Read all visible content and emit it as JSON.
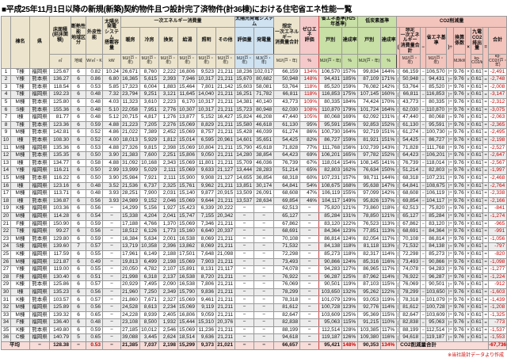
{
  "title": "■平成25年11月1日以降の新規(新築)契約物件且つ設計完了済物件(計36棟)における住宅省エネ性能一覧",
  "footnote": "※当社設計データより作成",
  "colors": {
    "header_beige": "#ece4cc",
    "pv_blue": "#cfe2f1",
    "zeroene_pink": "#f5c9c9",
    "standard_green": "#c8dfa6",
    "co2_salmon": "#f3c4bc",
    "average_pink": "#f7dcd8",
    "negative_red": "#cc0000"
  },
  "header": {
    "building": "棟名",
    "pref": "県",
    "area": "床面積\n(延床面積)",
    "area_unit": "㎡",
    "zone": "断熱性能\n地域区分",
    "zone_unit": "地域",
    "ua": "外皮性能",
    "ua_unit": "W/㎡・K",
    "pv": "太陽光発電\nシステム\n搭載容量",
    "pv_unit": "kW",
    "energy_group": "一次エネルギー消費量",
    "energy_cols": [
      "暖房",
      "冷房",
      "換気",
      "給湯",
      "照明",
      "その他"
    ],
    "mj_unit": "MJ/(戸・年)",
    "pv_group": "太陽光発電システム",
    "pv_eval": "評価量",
    "pv_gen": "発電量",
    "total": "想定\n一次エネルギー\n消費量合計",
    "zeroene": "ゼロエネ\n評価",
    "pct_unit": "%",
    "se_group": "省エネ基準(H25年基準)",
    "tt_group": "低炭素基準",
    "kobetsu": "戸別",
    "rate": "達成率",
    "co2_group": "CO2削減量",
    "co2_a": "想定\n一次エネルギー\n消費量合計",
    "co2_b": "省エネ基準",
    "co2_conv": "換算係数",
    "co2_emis": "九電CO2\n排出量",
    "co2_total": "合計",
    "mj_kwh_unit": "MJ/kWh",
    "kg_kwh_unit": "kg-CO2/kWh",
    "kg_unit": "kg-CO2/(戸・年)",
    "op_open": "(",
    "op_minus": "−",
    "op_closediv": ")÷",
    "op_times": "×",
    "op_eq": "="
  },
  "constants": {
    "conversion": "9.76",
    "emission": "0.617"
  },
  "rows": [
    [
      "1",
      "T棟",
      "福岡県",
      "125.67",
      "6",
      "0.82",
      "10.24",
      "26,671",
      "8,760",
      "2,222",
      "16,806",
      "9,523",
      "21,211",
      "18,236",
      "102,017",
      "66,159",
      "134%",
      "106,570",
      "157%",
      "99,834",
      "144%",
      "-2,491"
    ],
    [
      "2",
      "Y棟",
      "熊本県",
      "136.27",
      "6",
      "0.86",
      "6.80",
      "16,365",
      "5,615",
      "2,393",
      "7,946",
      "10,317",
      "21,211",
      "15,670",
      "80,682",
      "50,948",
      "148%",
      "94,431",
      "185%",
      "87,109",
      "171%",
      "-2,748"
    ],
    [
      "3",
      "T棟",
      "熊本県",
      "118.54",
      "6",
      "0.53",
      "5.85",
      "17,323",
      "6,004",
      "1,883",
      "15,464",
      "7,801",
      "21,142",
      "15,603",
      "58,081",
      "53,764",
      "118%",
      "85,520",
      "159%",
      "76,082",
      "142%",
      "-2,008"
    ],
    [
      "4",
      "T棟",
      "福岡県",
      "192.23",
      "6",
      "0.48",
      "7.32",
      "23,794",
      "9,251",
      "3,121",
      "11,645",
      "14,040",
      "21,211",
      "16,251",
      "71,782",
      "66,811",
      "118%",
      "116,853",
      "175%",
      "107,145",
      "160%",
      "-3,147"
    ],
    [
      "5",
      "M棟",
      "熊本県",
      "125.80",
      "6",
      "0.48",
      "4.03",
      "11,323",
      "3,610",
      "2,223",
      "6,170",
      "10,317",
      "21,211",
      "14,381",
      "40,140",
      "43,773",
      "109%",
      "80,335",
      "184%",
      "74,424",
      "170%",
      "-2,312"
    ],
    [
      "6",
      "S棟",
      "熊本県",
      "155.36",
      "6",
      "0.48",
      "5.10",
      "22,058",
      "7,951",
      "2,776",
      "10,307",
      "10,317",
      "21,211",
      "15,723",
      "80,948",
      "62,030",
      "108%",
      "110,870",
      "179%",
      "101,724",
      "164%",
      "-3,075"
    ],
    [
      "7",
      "I棟",
      "福岡県",
      "81.77",
      "6",
      "0.48",
      "5.12",
      "20,715",
      "4,817",
      "1,276",
      "13,877",
      "5,152",
      "16,427",
      "15,824",
      "46,208",
      "47,440",
      "105%",
      "80,068",
      "169%",
      "62,092",
      "131%",
      "-2,063"
    ],
    [
      "8",
      "T棟",
      "熊本県",
      "123.36",
      "6",
      "0.59",
      "4.88",
      "21,223",
      "7,205",
      "2,276",
      "15,069",
      "8,829",
      "21,211",
      "15,580",
      "46,618",
      "61,130",
      "95%",
      "95,591",
      "156%",
      "92,853",
      "152%",
      "-2,365"
    ],
    [
      "9",
      "M棟",
      "熊本県",
      "142.81",
      "6",
      "0.52",
      "4.86",
      "21,022",
      "7,389",
      "2,452",
      "15,069",
      "8,757",
      "21,211",
      "15,428",
      "46,039",
      "61,274",
      "86%",
      "100,730",
      "164%",
      "92,719",
      "151%",
      "-2,495"
    ],
    [
      "10",
      "I棟",
      "熊本県",
      "108.30",
      "6",
      "0.52",
      "4.00",
      "18,013",
      "5,929",
      "1,812",
      "15,014",
      "6,595",
      "20,961",
      "14,601",
      "35,651",
      "54,425",
      "82%",
      "86,727",
      "159%",
      "81,921",
      "151%",
      "-2,198"
    ],
    [
      "11",
      "M棟",
      "福岡県",
      "135.36",
      "6",
      "0.53",
      "4.88",
      "27,326",
      "9,815",
      "2,398",
      "15,069",
      "10,804",
      "21,211",
      "15,790",
      "45,618",
      "71,828",
      "77%",
      "111,768",
      "156%",
      "102,739",
      "143%",
      "-2,527"
    ],
    [
      "12",
      "M棟",
      "熊本県",
      "135.35",
      "6",
      "0.50",
      "3.90",
      "21,383",
      "7,600",
      "2,251",
      "15,806",
      "9,050",
      "21,211",
      "14,280",
      "38,854",
      "64,423",
      "69%",
      "106,201",
      "165%",
      "97,782",
      "152%",
      "-2,647"
    ],
    [
      "13",
      "I棟",
      "熊本県",
      "134.77",
      "6",
      "0.58",
      "4.88",
      "31,092",
      "10,168",
      "2,343",
      "15,069",
      "11,801",
      "21,211",
      "15,709",
      "46,036",
      "76,739",
      "67%",
      "118,014",
      "154%",
      "108,145",
      "141%",
      "-2,567"
    ],
    [
      "14",
      "Y棟",
      "福岡県",
      "116.21",
      "6",
      "0.50",
      "2.99",
      "13,999",
      "5,029",
      "2,111",
      "15,069",
      "9,633",
      "21,127",
      "13,444",
      "28,283",
      "51,214",
      "65%",
      "82,803",
      "162%",
      "76,634",
      "150%",
      "-1,997"
    ],
    [
      "15",
      "M棟",
      "熊本県",
      "116.22",
      "6",
      "0.50",
      "3.90",
      "25,984",
      "7,921",
      "2,111",
      "15,900",
      "9,908",
      "21,127",
      "14,655",
      "36,854",
      "68,318",
      "60%",
      "107,231",
      "157%",
      "98,711",
      "144%",
      "-2,468"
    ],
    [
      "16",
      "I棟",
      "福岡県",
      "123.16",
      "6",
      "0.48",
      "3.52",
      "21,536",
      "6,737",
      "2,325",
      "15,761",
      "9,962",
      "21,211",
      "13,851",
      "30,174",
      "64,841",
      "54%",
      "108,675",
      "168%",
      "95,638",
      "147%",
      "-2,764"
    ],
    [
      "17",
      "M棟",
      "福岡県",
      "113.71",
      "6",
      "0.48",
      "3.93",
      "28,251",
      "7,900",
      "2,031",
      "15,140",
      "9,877",
      "20,915",
      "13,509",
      "26,091",
      "68,608",
      "47%",
      "106,119",
      "155%",
      "97,099",
      "142%",
      "-2,338"
    ],
    [
      "18",
      "I棟",
      "熊本県",
      "136.87",
      "6",
      "0.56",
      "3.93",
      "24,989",
      "9,152",
      "2,046",
      "15,069",
      "9,644",
      "21,211",
      "13,537",
      "28,634",
      "69,854",
      "46%",
      "104,117",
      "149%",
      "95,826",
      "137%",
      "-2,166"
    ],
    [
      "19",
      "K棟",
      "福岡県",
      "103.36",
      "6",
      "0.56",
      "−",
      "14,299",
      "5,156",
      "1,927",
      "15,423",
      "6,339",
      "20,222",
      "−",
      "−",
      "62,513",
      "−",
      "75,820",
      "121%",
      "73,860",
      "118%",
      "-841"
    ],
    [
      "20",
      "M棟",
      "福岡県",
      "114.28",
      "6",
      "0.54",
      "−",
      "15,338",
      "4,204",
      "2,041",
      "15,747",
      "7,155",
      "20,342",
      "−",
      "−",
      "65,127",
      "−",
      "85,284",
      "131%",
      "78,850",
      "121%",
      "-1,274"
    ],
    [
      "21",
      "F棟",
      "福岡県",
      "150.90",
      "6",
      "0.59",
      "−",
      "17,188",
      "4,766",
      "1,370",
      "15,069",
      "7,346",
      "21,211",
      "−",
      "−",
      "67,862",
      "−",
      "83,120",
      "122%",
      "76,523",
      "113%",
      "-965"
    ],
    [
      "22",
      "T棟",
      "福岡県",
      "99.27",
      "6",
      "0.56",
      "−",
      "18,512",
      "6,126",
      "1,773",
      "15,160",
      "6,640",
      "20,337",
      "−",
      "−",
      "68,691",
      "−",
      "84,364",
      "123%",
      "77,851",
      "113%",
      "-991"
    ],
    [
      "23",
      "M棟",
      "熊本県",
      "129.80",
      "6",
      "0.59",
      "−",
      "16,384",
      "5,634",
      "2,001",
      "16,538",
      "8,069",
      "21,211",
      "−",
      "−",
      "70,108",
      "−",
      "86,814",
      "124%",
      "82,054",
      "117%",
      "-1,056"
    ],
    [
      "24",
      "S棟",
      "福岡県",
      "139.60",
      "7",
      "0.57",
      "−",
      "13,719",
      "10,358",
      "2,396",
      "13,862",
      "8,069",
      "21,211",
      "−",
      "−",
      "71,532",
      "−",
      "84,138",
      "118%",
      "81,118",
      "113%",
      "-797"
    ],
    [
      "25",
      "K棟",
      "福岡県",
      "117.59",
      "6",
      "0.55",
      "−",
      "17,961",
      "6,149",
      "2,188",
      "17,501",
      "7,648",
      "21,098",
      "−",
      "−",
      "72,298",
      "−",
      "85,273",
      "118%",
      "82,317",
      "114%",
      "-820"
    ],
    [
      "26",
      "M棟",
      "福岡県",
      "121.87",
      "6",
      "0.49",
      "−",
      "19,813",
      "6,499",
      "2,198",
      "15,069",
      "7,903",
      "21,211",
      "−",
      "−",
      "73,493",
      "−",
      "90,866",
      "124%",
      "85,316",
      "116%",
      "-1,098"
    ],
    [
      "27",
      "Y棟",
      "福岡県",
      "119.00",
      "6",
      "0.55",
      "−",
      "20,050",
      "4,782",
      "2,107",
      "15,891",
      "8,131",
      "21,117",
      "−",
      "−",
      "74,078",
      "−",
      "94,283",
      "127%",
      "86,965",
      "117%",
      "-1,277"
    ],
    [
      "28",
      "F棟",
      "福岡県",
      "130.40",
      "6",
      "0.51",
      "−",
      "21,998",
      "6,318",
      "2,137",
      "16,538",
      "8,720",
      "21,211",
      "−",
      "−",
      "76,922",
      "−",
      "96,287",
      "125%",
      "87,962",
      "114%",
      "-1,224"
    ],
    [
      "29",
      "K棟",
      "熊本県",
      "125.86",
      "6",
      "0.57",
      "−",
      "20,929",
      "7,495",
      "2,090",
      "16,538",
      "7,806",
      "21,211",
      "−",
      "−",
      "76,069",
      "−",
      "90,501",
      "119%",
      "87,103",
      "115%",
      "-912"
    ],
    [
      "30",
      "I棟",
      "福岡県",
      "135.23",
      "6",
      "0.56",
      "−",
      "21,960",
      "7,250",
      "2,349",
      "15,790",
      "9,836",
      "21,211",
      "−",
      "−",
      "78,299",
      "−",
      "103,650",
      "132%",
      "95,262",
      "122%",
      "-1,603"
    ],
    [
      "31",
      "K棟",
      "熊本県",
      "103.57",
      "6",
      "0.57",
      "−",
      "21,860",
      "7,671",
      "2,327",
      "15,069",
      "9,461",
      "21,211",
      "−",
      "−",
      "78,318",
      "−",
      "101,079",
      "129%",
      "93,053",
      "119%",
      "-1,439"
    ],
    [
      "32",
      "M棟",
      "福岡県",
      "125.89",
      "6",
      "0.56",
      "−",
      "24,528",
      "8,613",
      "2,234",
      "15,069",
      "9,119",
      "21,211",
      "−",
      "−",
      "81,612",
      "−",
      "100,728",
      "123%",
      "92,776",
      "114%",
      "-1,208"
    ],
    [
      "33",
      "M棟",
      "福岡県",
      "139.32",
      "6",
      "0.65",
      "−",
      "24,228",
      "8,939",
      "2,405",
      "16,806",
      "9,059",
      "21,211",
      "−",
      "−",
      "82,647",
      "−",
      "103,609",
      "125%",
      "95,369",
      "115%",
      "-1,325"
    ],
    [
      "34",
      "F棟",
      "福岡県",
      "136.40",
      "6",
      "0.48",
      "−",
      "23,108",
      "8,500",
      "1,932",
      "15,444",
      "15,310",
      "20,376",
      "−",
      "−",
      "82,838",
      "−",
      "95,063",
      "115%",
      "91,215",
      "110%",
      "-773"
    ],
    [
      "35",
      "K棟",
      "熊本県",
      "149.80",
      "6",
      "0.59",
      "−",
      "27,185",
      "10,012",
      "2,546",
      "15,069",
      "11,236",
      "21,211",
      "−",
      "−",
      "88,199",
      "−",
      "112,514",
      "128%",
      "103,385",
      "117%",
      "-1,537"
    ],
    [
      "36",
      "C棟",
      "福岡県",
      "140.79",
      "5",
      "0.65",
      "−",
      "39,088",
      "3,445",
      "2,624",
      "18,514",
      "9,636",
      "21,211",
      "−",
      "−",
      "94,618",
      "−",
      "119,187",
      "126%",
      "109,380",
      "116%",
      "-1,553"
    ]
  ],
  "average": {
    "label": "平均",
    "pref": "−",
    "area": "128.38",
    "zone": "−",
    "ua": "0.53",
    "pv": "−",
    "heat": "21,385",
    "cool": "7,037",
    "vent": "2,198",
    "hw": "15,299",
    "light": "9,373",
    "other": "21,021",
    "pveval": "−",
    "pvgen": "−",
    "total": "66,657",
    "zeroene": "−",
    "se": "95,421",
    "serate": "148%",
    "tt": "90,353",
    "ttrate": "134%",
    "co2_label": "CO2削減量合計",
    "co2": "-67,736"
  }
}
